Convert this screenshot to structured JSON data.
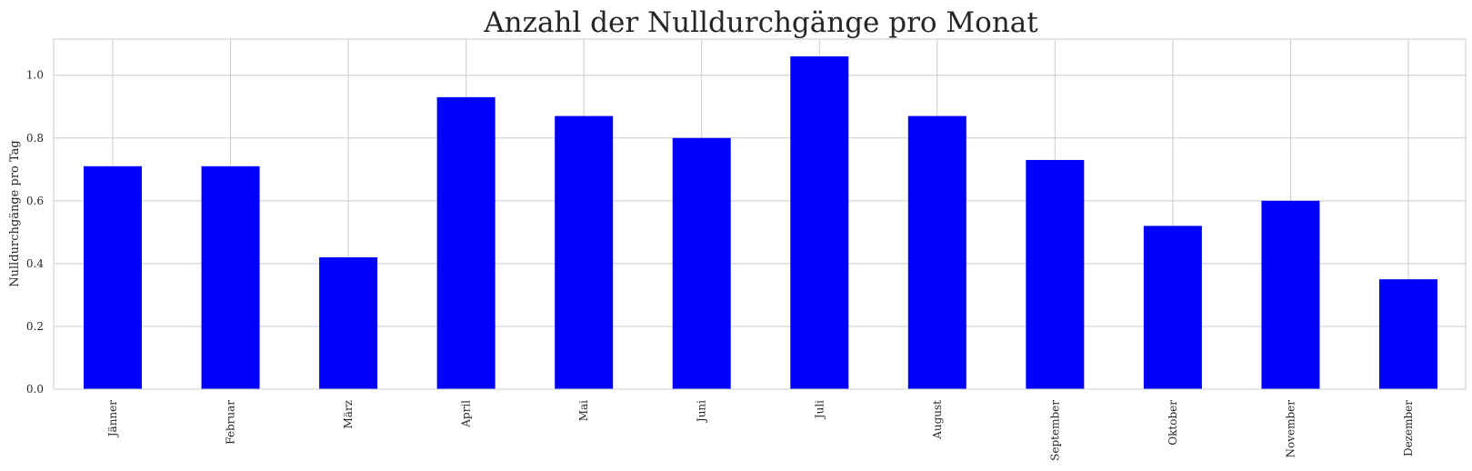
{
  "chart_data": {
    "type": "bar",
    "title": "Anzahl der Nulldurchgänge pro Monat",
    "xlabel": "",
    "ylabel": "Nulldurchgänge pro Tag",
    "categories": [
      "Jänner",
      "Februar",
      "März",
      "April",
      "Mai",
      "Juni",
      "Juli",
      "August",
      "September",
      "Oktober",
      "November",
      "Dezember"
    ],
    "values": [
      0.71,
      0.71,
      0.42,
      0.93,
      0.87,
      0.8,
      1.06,
      0.87,
      0.73,
      0.52,
      0.6,
      0.35
    ],
    "ylim": [
      0,
      1.115
    ],
    "yticks": [
      "0.0",
      "0.2",
      "0.4",
      "0.6",
      "0.8",
      "1.0"
    ],
    "ytick_values": [
      0,
      0.2,
      0.4,
      0.6,
      0.8,
      1.0
    ],
    "bar_color": "#0000ff",
    "grid": true,
    "legend": "none"
  }
}
